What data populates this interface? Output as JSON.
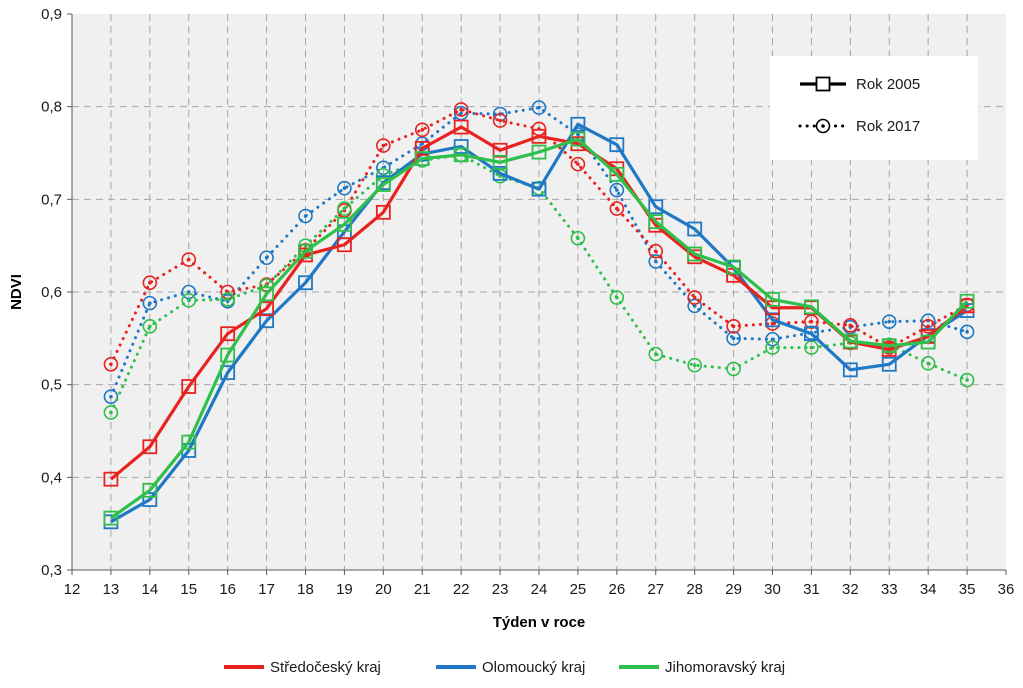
{
  "chart_data": {
    "type": "line",
    "title": "",
    "xlabel": "Týden v roce",
    "ylabel": "NDVI",
    "xlim": [
      12,
      36
    ],
    "ylim": [
      0.3,
      0.9
    ],
    "x_ticks": [
      "12",
      "13",
      "14",
      "15",
      "16",
      "17",
      "18",
      "19",
      "20",
      "21",
      "22",
      "23",
      "24",
      "25",
      "26",
      "27",
      "28",
      "29",
      "30",
      "31",
      "32",
      "33",
      "34",
      "35",
      "36"
    ],
    "y_ticks": [
      "0,3",
      "0,4",
      "0,5",
      "0,6",
      "0,7",
      "0,8",
      "0,9"
    ],
    "grid": true,
    "x": [
      13,
      14,
      15,
      16,
      17,
      18,
      19,
      20,
      21,
      22,
      23,
      24,
      25,
      26,
      27,
      28,
      29,
      30,
      31,
      32,
      33,
      34,
      35
    ],
    "year_legend": {
      "placement": "top-right",
      "items": [
        {
          "label": "Rok 2005",
          "style": "solid-square"
        },
        {
          "label": "Rok 2017",
          "style": "dotted-circle"
        }
      ]
    },
    "region_legend": {
      "placement": "bottom",
      "items": [
        {
          "label": "Středočeský kraj",
          "color": "#e8221f"
        },
        {
          "label": "Olomoucký kraj",
          "color": "#1f78c4"
        },
        {
          "label": "Jihomoravský kraj",
          "color": "#2fbf4a"
        }
      ]
    },
    "series": [
      {
        "region": "Středočeský kraj",
        "year": "Rok 2005",
        "color": "#e8221f",
        "values": [
          0.398,
          0.433,
          0.498,
          0.555,
          0.582,
          0.64,
          0.651,
          0.686,
          0.755,
          0.778,
          0.753,
          0.768,
          0.76,
          0.733,
          0.672,
          0.638,
          0.618,
          0.583,
          0.583,
          0.546,
          0.538,
          0.552,
          0.585
        ]
      },
      {
        "region": "Olomoucký kraj",
        "year": "Rok 2005",
        "color": "#1f78c4",
        "values": [
          0.352,
          0.376,
          0.429,
          0.513,
          0.569,
          0.61,
          0.665,
          0.718,
          0.749,
          0.757,
          0.728,
          0.711,
          0.781,
          0.759,
          0.692,
          0.668,
          0.626,
          0.57,
          0.555,
          0.516,
          0.522,
          0.553,
          0.58
        ]
      },
      {
        "region": "Jihomoravský kraj",
        "year": "Rok 2005",
        "color": "#2fbf4a",
        "values": [
          0.356,
          0.386,
          0.438,
          0.532,
          0.598,
          0.644,
          0.673,
          0.716,
          0.744,
          0.748,
          0.74,
          0.751,
          0.765,
          0.727,
          0.676,
          0.641,
          0.627,
          0.592,
          0.584,
          0.547,
          0.542,
          0.546,
          0.59
        ]
      },
      {
        "region": "Středočeský kraj",
        "year": "Rok 2017",
        "color": "#e8221f",
        "values": [
          0.522,
          0.61,
          0.635,
          0.6,
          0.608,
          0.645,
          0.688,
          0.758,
          0.775,
          0.797,
          0.785,
          0.776,
          0.738,
          0.69,
          0.644,
          0.594,
          0.563,
          0.566,
          0.568,
          0.564,
          0.54,
          0.563,
          0.586
        ]
      },
      {
        "region": "Olomoucký kraj",
        "year": "Rok 2017",
        "color": "#1f78c4",
        "values": [
          0.487,
          0.588,
          0.6,
          0.59,
          0.637,
          0.682,
          0.712,
          0.734,
          0.76,
          0.793,
          0.792,
          0.799,
          0.77,
          0.71,
          0.633,
          0.585,
          0.55,
          0.549,
          0.556,
          0.562,
          0.568,
          0.569,
          0.557
        ]
      },
      {
        "region": "Jihomoravský kraj",
        "year": "Rok 2017",
        "color": "#2fbf4a",
        "values": [
          0.47,
          0.563,
          0.591,
          0.592,
          0.607,
          0.65,
          0.69,
          0.726,
          0.742,
          0.748,
          0.725,
          0.712,
          0.658,
          0.594,
          0.533,
          0.521,
          0.517,
          0.54,
          0.54,
          0.545,
          0.543,
          0.523,
          0.505
        ]
      }
    ]
  }
}
